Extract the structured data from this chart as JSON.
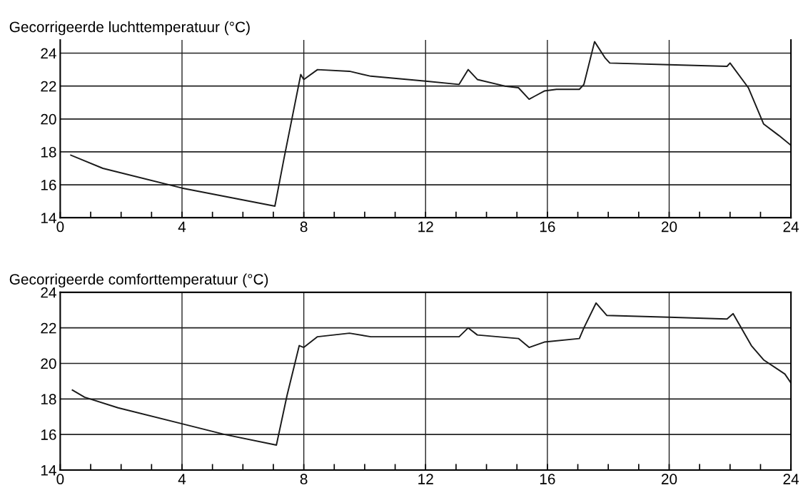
{
  "chart_data": [
    {
      "type": "line",
      "title": "Gecorrigeerde luchttemperatuur (°C)",
      "xlim": [
        0,
        24
      ],
      "ylim": [
        14,
        24.8
      ],
      "xticks": [
        0,
        {
          "value": 1,
          "label": null
        },
        {
          "value": 2,
          "label": null
        },
        {
          "value": 3,
          "label": null
        },
        4,
        {
          "value": 5,
          "label": null
        },
        {
          "value": 6,
          "label": null
        },
        {
          "value": 7,
          "label": null
        },
        8,
        {
          "value": 9,
          "label": null
        },
        {
          "value": 10,
          "label": null
        },
        {
          "value": 11,
          "label": null
        },
        12,
        {
          "value": 13,
          "label": null
        },
        {
          "value": 14,
          "label": null
        },
        {
          "value": 15,
          "label": null
        },
        16,
        {
          "value": 17,
          "label": null
        },
        {
          "value": 18,
          "label": null
        },
        {
          "value": 19,
          "label": null
        },
        20,
        {
          "value": 21,
          "label": null
        },
        {
          "value": 22,
          "label": null
        },
        {
          "value": 23,
          "label": null
        },
        24
      ],
      "yticks": [
        14,
        16,
        18,
        20,
        22,
        24
      ],
      "grid": true,
      "marker": "none",
      "line_style": "solid",
      "x": [
        0.35,
        1.4,
        4.0,
        7.05,
        7.35,
        7.9,
        8.0,
        8.45,
        9.5,
        10.2,
        12.0,
        13.1,
        13.4,
        13.7,
        14.6,
        15.05,
        15.4,
        15.6,
        15.9,
        16.3,
        17.05,
        17.2,
        17.55,
        17.9,
        18.05,
        20.0,
        21.9,
        22.0,
        22.6,
        23.1,
        23.6,
        24.0
      ],
      "series": [
        {
          "color": "#1a1a1a",
          "values": [
            17.8,
            17.0,
            15.8,
            14.7,
            17.6,
            22.7,
            22.4,
            23.0,
            22.9,
            22.6,
            22.3,
            22.1,
            23.0,
            22.4,
            22.0,
            21.9,
            21.2,
            21.4,
            21.7,
            21.8,
            21.8,
            22.1,
            24.7,
            23.7,
            23.4,
            23.3,
            23.2,
            23.4,
            21.9,
            19.7,
            19.0,
            18.4
          ]
        }
      ]
    },
    {
      "type": "line",
      "title": "Gecorrigeerde comforttemperatuur (°C)",
      "xlim": [
        0,
        24
      ],
      "ylim": [
        14,
        24
      ],
      "xticks": [
        0,
        {
          "value": 1,
          "label": null
        },
        {
          "value": 2,
          "label": null
        },
        {
          "value": 3,
          "label": null
        },
        4,
        {
          "value": 5,
          "label": null
        },
        {
          "value": 6,
          "label": null
        },
        {
          "value": 7,
          "label": null
        },
        8,
        {
          "value": 9,
          "label": null
        },
        {
          "value": 10,
          "label": null
        },
        {
          "value": 11,
          "label": null
        },
        12,
        {
          "value": 13,
          "label": null
        },
        {
          "value": 14,
          "label": null
        },
        {
          "value": 15,
          "label": null
        },
        16,
        {
          "value": 17,
          "label": null
        },
        {
          "value": 18,
          "label": null
        },
        {
          "value": 19,
          "label": null
        },
        20,
        {
          "value": 21,
          "label": null
        },
        {
          "value": 22,
          "label": null
        },
        {
          "value": 23,
          "label": null
        },
        24
      ],
      "yticks": [
        14,
        16,
        18,
        20,
        22,
        24
      ],
      "grid": true,
      "marker": "none",
      "line_style": "solid",
      "x": [
        0.4,
        0.8,
        1.9,
        4.0,
        5.4,
        7.1,
        7.45,
        7.85,
        8.0,
        8.45,
        9.5,
        10.2,
        12.0,
        13.1,
        13.4,
        13.7,
        15.05,
        15.4,
        15.9,
        17.05,
        17.2,
        17.6,
        17.95,
        20.0,
        21.9,
        22.1,
        22.7,
        23.1,
        23.8,
        24.0
      ],
      "series": [
        {
          "color": "#1a1a1a",
          "values": [
            18.5,
            18.1,
            17.5,
            16.6,
            16.0,
            15.4,
            18.2,
            21.0,
            20.9,
            21.5,
            21.7,
            21.5,
            21.5,
            21.5,
            22.0,
            21.6,
            21.4,
            20.9,
            21.2,
            21.4,
            22.0,
            23.4,
            22.7,
            22.6,
            22.5,
            22.8,
            21.0,
            20.2,
            19.4,
            18.9
          ]
        }
      ]
    }
  ]
}
